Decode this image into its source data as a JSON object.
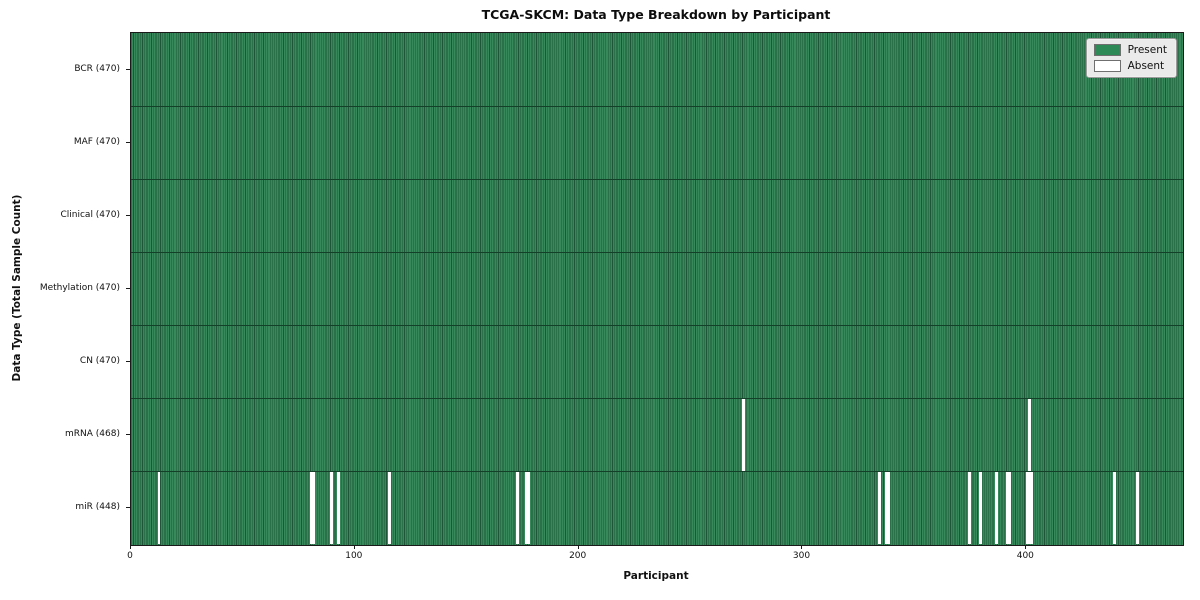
{
  "chart_data": {
    "type": "heatmap",
    "title": "TCGA-SKCM: Data Type Breakdown by Participant",
    "xlabel": "Participant",
    "ylabel": "Data Type (Total Sample Count)",
    "x_range": [
      0,
      470
    ],
    "x_ticks": [
      0,
      100,
      200,
      300,
      400
    ],
    "n_participants": 470,
    "grid": false,
    "legend_position": "upper right",
    "legend": [
      {
        "label": "Present",
        "color": "#2e8b57"
      },
      {
        "label": "Absent",
        "color": "#ffffff"
      }
    ],
    "rows": [
      {
        "label": "BCR (470)",
        "total": 470,
        "absent": []
      },
      {
        "label": "MAF (470)",
        "total": 470,
        "absent": []
      },
      {
        "label": "Clinical (470)",
        "total": 470,
        "absent": []
      },
      {
        "label": "Methylation (470)",
        "total": 470,
        "absent": []
      },
      {
        "label": "CN (470)",
        "total": 470,
        "absent": []
      },
      {
        "label": "mRNA (468)",
        "total": 468,
        "absent": [
          273,
          401
        ]
      },
      {
        "label": "miR (448)",
        "total": 448,
        "absent": [
          12,
          80,
          81,
          89,
          92,
          115,
          172,
          176,
          177,
          334,
          337,
          338,
          374,
          379,
          386,
          391,
          392,
          400,
          401,
          402,
          439,
          449
        ]
      }
    ]
  }
}
